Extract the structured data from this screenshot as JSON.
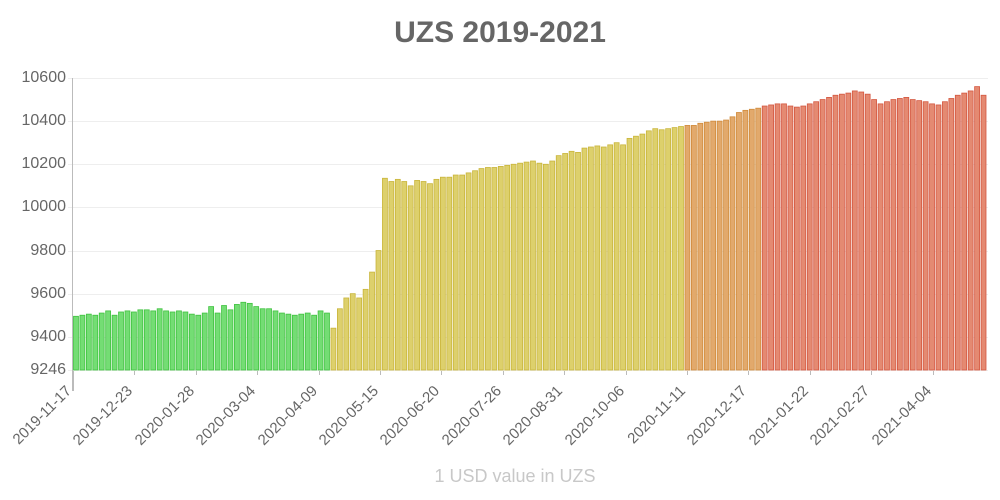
{
  "chart_data": {
    "type": "bar",
    "title": "UZS 2019-2021",
    "xlabel": "1 USD value in UZS",
    "ylabel": "",
    "ylim": [
      9246,
      10600
    ],
    "y_ticks": [
      10600,
      10400,
      10200,
      10000,
      9800,
      9600,
      9400,
      9246
    ],
    "x_tick_labels": [
      "2019-11-17",
      "2019-12-23",
      "2020-01-28",
      "2020-03-04",
      "2020-04-09",
      "2020-05-15",
      "2020-06-20",
      "2020-07-26",
      "2020-08-31",
      "2020-10-06",
      "2020-11-11",
      "2020-12-17",
      "2021-01-22",
      "2021-02-27",
      "2021-04-04"
    ],
    "grid": true,
    "legend": "none",
    "sample_interval_days": 4,
    "start_date": "2019-11-17",
    "segment_colors": [
      {
        "until_index": 40,
        "fill": "#74dd74",
        "border": "#3fc23f"
      },
      {
        "until_index": 95,
        "fill": "#ddd06c",
        "border": "#c9b53a"
      },
      {
        "until_index": 107,
        "fill": "#e2a96c",
        "border": "#d08a3a"
      },
      {
        "until_index": 999,
        "fill": "#e48a72",
        "border": "#d4563f"
      }
    ],
    "values": [
      9495,
      9500,
      9505,
      9500,
      9510,
      9520,
      9500,
      9515,
      9520,
      9515,
      9525,
      9525,
      9520,
      9530,
      9520,
      9515,
      9520,
      9515,
      9505,
      9500,
      9510,
      9540,
      9510,
      9545,
      9525,
      9550,
      9560,
      9555,
      9540,
      9530,
      9530,
      9520,
      9510,
      9505,
      9500,
      9505,
      9510,
      9500,
      9520,
      9510,
      9440,
      9530,
      9580,
      9600,
      9580,
      9620,
      9700,
      9800,
      10135,
      10120,
      10130,
      10120,
      10100,
      10125,
      10120,
      10110,
      10130,
      10140,
      10140,
      10150,
      10150,
      10160,
      10170,
      10180,
      10185,
      10185,
      10190,
      10195,
      10200,
      10205,
      10210,
      10215,
      10205,
      10200,
      10215,
      10240,
      10250,
      10260,
      10255,
      10275,
      10280,
      10285,
      10280,
      10290,
      10300,
      10290,
      10320,
      10330,
      10340,
      10355,
      10365,
      10360,
      10365,
      10370,
      10375,
      10380,
      10380,
      10390,
      10395,
      10400,
      10400,
      10405,
      10420,
      10440,
      10450,
      10455,
      10460,
      10470,
      10475,
      10480,
      10480,
      10470,
      10465,
      10470,
      10480,
      10490,
      10500,
      10510,
      10520,
      10525,
      10530,
      10540,
      10535,
      10525,
      10500,
      10480,
      10490,
      10500,
      10505,
      10510,
      10500,
      10495,
      10490,
      10480,
      10475,
      10490,
      10505,
      10520,
      10530,
      10540,
      10560,
      10520
    ]
  }
}
